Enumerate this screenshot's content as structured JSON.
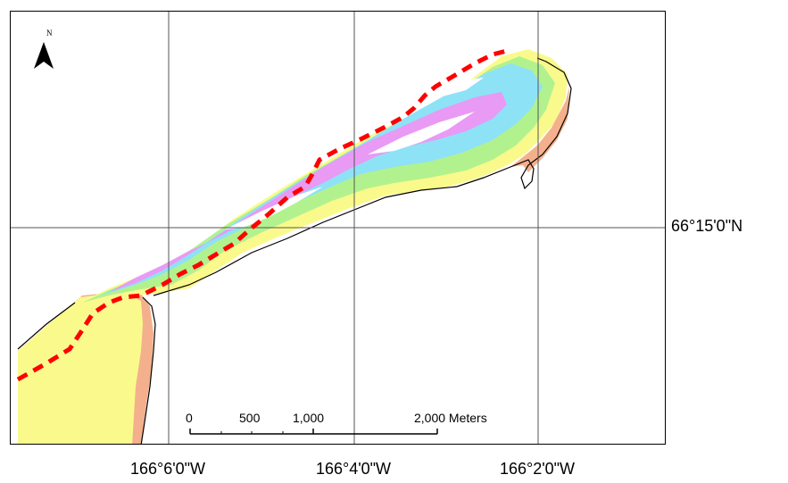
{
  "map": {
    "north_label": "N",
    "longitude_labels": [
      "166°6'0\"W",
      "166°4'0\"W",
      "166°2'0\"W"
    ],
    "latitude_labels": [
      "66°15'0\"N"
    ],
    "scale_bar": {
      "ticks": [
        "0",
        "500",
        "1,000",
        "2,000 Meters"
      ]
    },
    "colors": {
      "yellow": "#fafa8c",
      "salmon": "#f4b08c",
      "green": "#b2f28e",
      "cyan": "#8ee2f6",
      "magenta": "#e89af4",
      "white_patch": "#ffffff",
      "route_line": "#ff0000"
    },
    "icons": [
      "north-arrow-icon"
    ]
  }
}
